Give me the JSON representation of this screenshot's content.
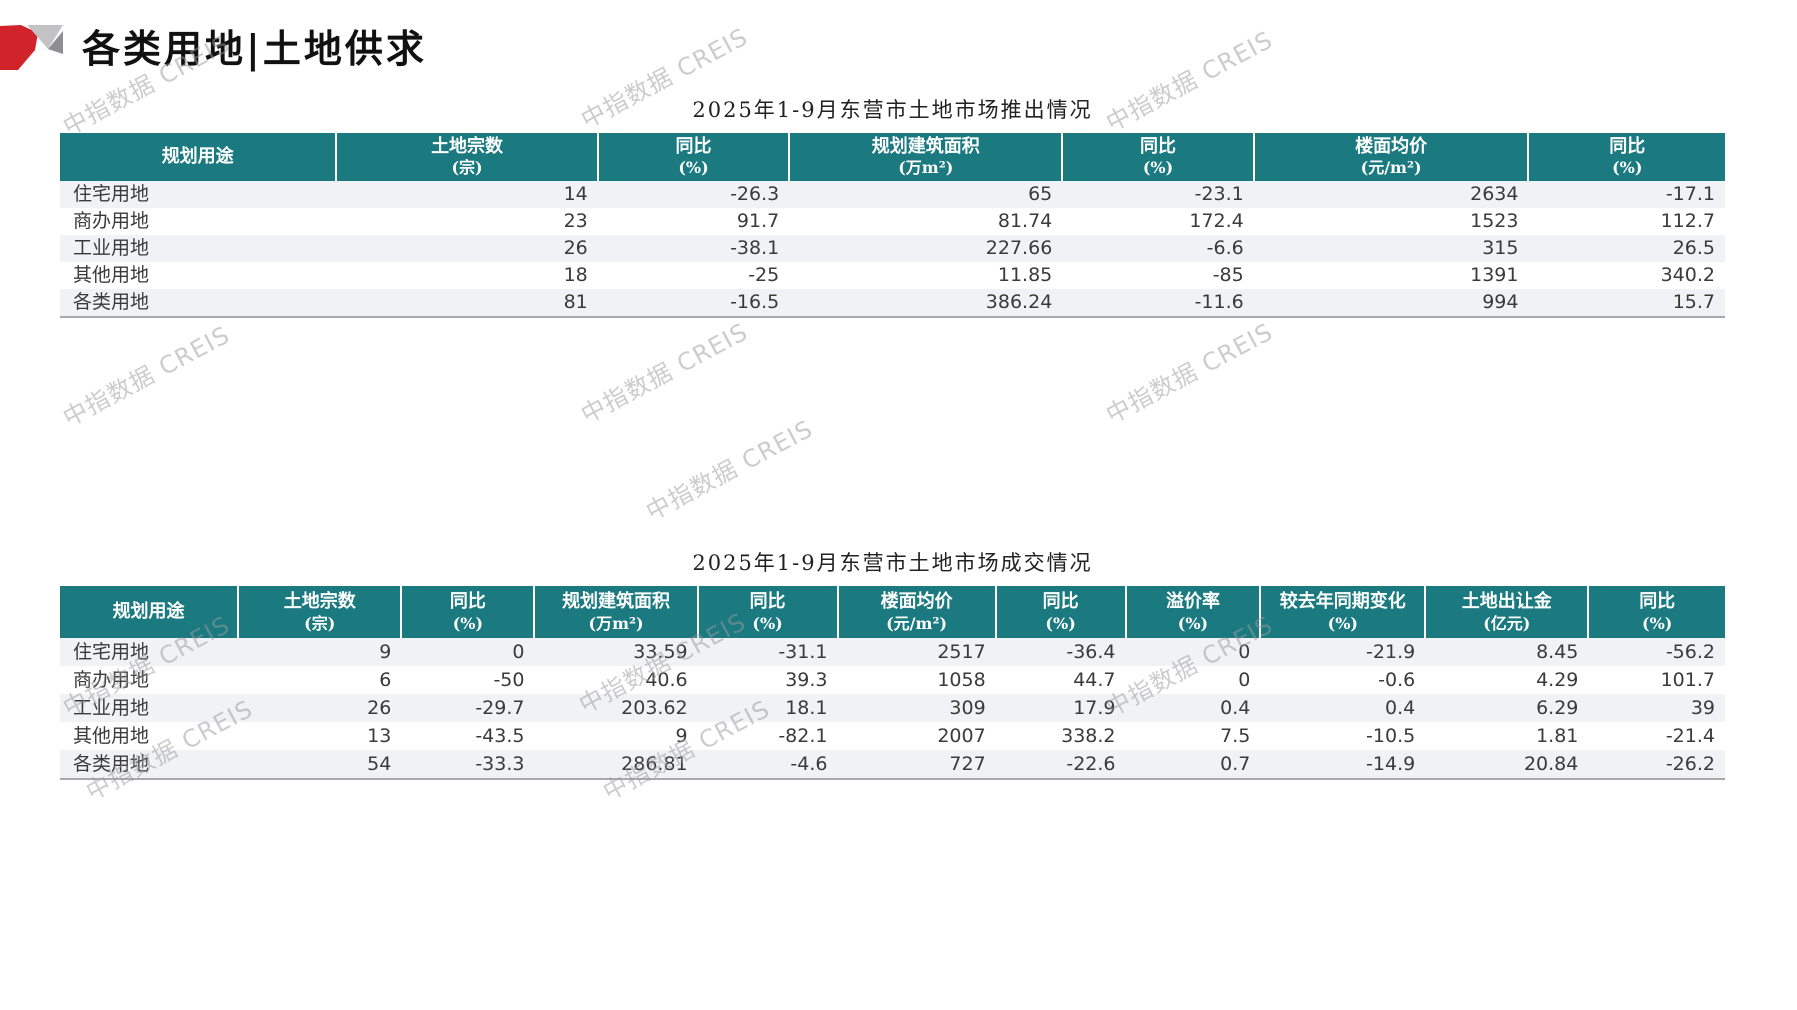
{
  "page": {
    "title": "各类用地|土地供求",
    "watermark": "中指数据 CREIS"
  },
  "colors": {
    "header_teal": "#1b7a80",
    "logo_red": "#d0232a",
    "logo_gray_light": "#c3c3c5",
    "logo_gray_dark": "#8e8e90",
    "row_stripe": "#f1f2f6"
  },
  "supply_table": {
    "title": "2025年1-9月东营市土地市场推出情况",
    "columns": [
      {
        "label": "规划用途",
        "unit": ""
      },
      {
        "label": "土地宗数",
        "unit": "(宗)"
      },
      {
        "label": "同比",
        "unit": "(%)"
      },
      {
        "label": "规划建筑面积",
        "unit": "(万m²)"
      },
      {
        "label": "同比",
        "unit": "(%)"
      },
      {
        "label": "楼面均价",
        "unit": "(元/m²)"
      },
      {
        "label": "同比",
        "unit": "(%)"
      }
    ],
    "rows": [
      [
        "住宅用地",
        "14",
        "-26.3",
        "65",
        "-23.1",
        "2634",
        "-17.1"
      ],
      [
        "商办用地",
        "23",
        "91.7",
        "81.74",
        "172.4",
        "1523",
        "112.7"
      ],
      [
        "工业用地",
        "26",
        "-38.1",
        "227.66",
        "-6.6",
        "315",
        "26.5"
      ],
      [
        "其他用地",
        "18",
        "-25",
        "11.85",
        "-85",
        "1391",
        "340.2"
      ],
      [
        "各类用地",
        "81",
        "-16.5",
        "386.24",
        "-11.6",
        "994",
        "15.7"
      ]
    ]
  },
  "deal_table": {
    "title": "2025年1-9月东营市土地市场成交情况",
    "columns": [
      {
        "label": "规划用途",
        "unit": ""
      },
      {
        "label": "土地宗数",
        "unit": "(宗)"
      },
      {
        "label": "同比",
        "unit": "(%)"
      },
      {
        "label": "规划建筑面积",
        "unit": "(万m²)"
      },
      {
        "label": "同比",
        "unit": "(%)"
      },
      {
        "label": "楼面均价",
        "unit": "(元/m²)"
      },
      {
        "label": "同比",
        "unit": "(%)"
      },
      {
        "label": "溢价率",
        "unit": "(%)"
      },
      {
        "label": "较去年同期变化",
        "unit": "(%)"
      },
      {
        "label": "土地出让金",
        "unit": "(亿元)"
      },
      {
        "label": "同比",
        "unit": "(%)"
      }
    ],
    "rows": [
      [
        "住宅用地",
        "9",
        "0",
        "33.59",
        "-31.1",
        "2517",
        "-36.4",
        "0",
        "-21.9",
        "8.45",
        "-56.2"
      ],
      [
        "商办用地",
        "6",
        "-50",
        "40.6",
        "39.3",
        "1058",
        "44.7",
        "0",
        "-0.6",
        "4.29",
        "101.7"
      ],
      [
        "工业用地",
        "26",
        "-29.7",
        "203.62",
        "18.1",
        "309",
        "17.9",
        "0.4",
        "0.4",
        "6.29",
        "39"
      ],
      [
        "其他用地",
        "13",
        "-43.5",
        "9",
        "-82.1",
        "2007",
        "338.2",
        "7.5",
        "-10.5",
        "1.81",
        "-21.4"
      ],
      [
        "各类用地",
        "54",
        "-33.3",
        "286.81",
        "-4.6",
        "727",
        "-22.6",
        "0.7",
        "-14.9",
        "20.84",
        "-26.2"
      ]
    ]
  }
}
